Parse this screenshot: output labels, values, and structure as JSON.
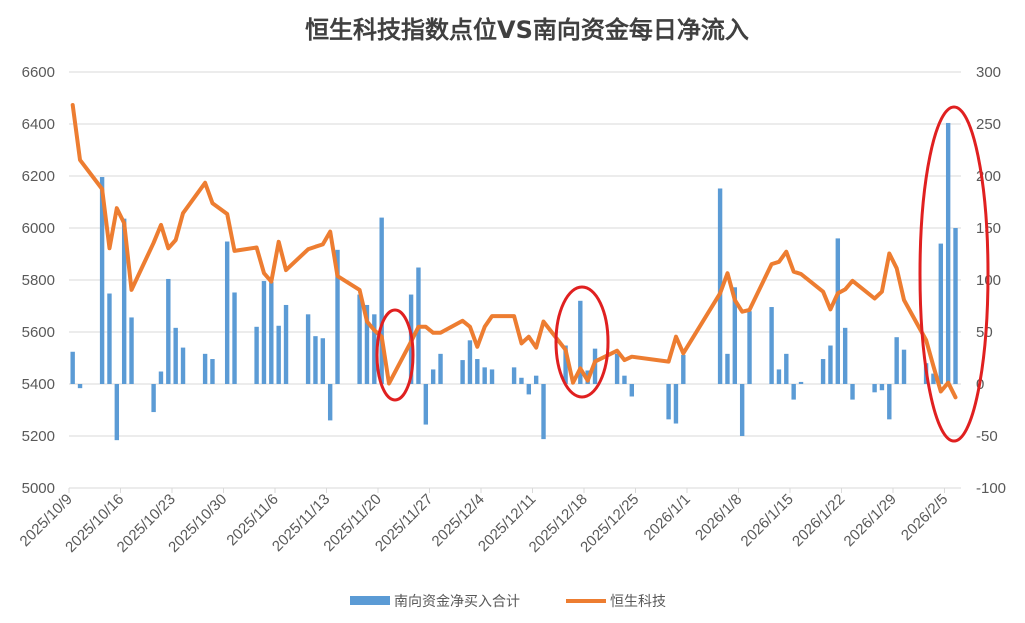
{
  "chart_data": {
    "type": "bar+line",
    "title": "恒生科技指数点位VS南向资金每日净流入",
    "colors": {
      "bar": "#5B9BD5",
      "line": "#ED7D31",
      "annotation": "#E02020"
    },
    "grid": true,
    "legend_placement": "bottom",
    "left_axis": {
      "range": [
        5000,
        6600
      ],
      "ticks": [
        "5000",
        "5200",
        "5400",
        "5600",
        "5800",
        "6000",
        "6200",
        "6400",
        "6600"
      ]
    },
    "right_axis": {
      "range": [
        -100,
        300
      ],
      "ticks": [
        "-100",
        "-50",
        "0",
        "50",
        "100",
        "150",
        "200",
        "250",
        "300"
      ]
    },
    "x_ticks": [
      "2025/10/9",
      "2025/10/16",
      "2025/10/23",
      "2025/10/30",
      "2025/11/6",
      "2025/11/13",
      "2025/11/20",
      "2025/11/27",
      "2025/12/4",
      "2025/12/11",
      "2025/12/18",
      "2025/12/25",
      "2026/1/1",
      "2026/1/8",
      "2026/1/15",
      "2026/1/22",
      "2026/1/29",
      "2026/2/5"
    ],
    "dates": [
      "2025/10/9",
      "2025/10/10",
      "2025/10/13",
      "2025/10/14",
      "2025/10/15",
      "2025/10/16",
      "2025/10/17",
      "2025/10/20",
      "2025/10/21",
      "2025/10/22",
      "2025/10/23",
      "2025/10/24",
      "2025/10/27",
      "2025/10/28",
      "2025/10/30",
      "2025/10/31",
      "2025/11/3",
      "2025/11/4",
      "2025/11/5",
      "2025/11/6",
      "2025/11/7",
      "2025/11/10",
      "2025/11/11",
      "2025/11/12",
      "2025/11/13",
      "2025/11/14",
      "2025/11/17",
      "2025/11/18",
      "2025/11/19",
      "2025/11/20",
      "2025/11/21",
      "2025/11/24",
      "2025/11/25",
      "2025/11/26",
      "2025/11/27",
      "2025/11/28",
      "2025/12/1",
      "2025/12/2",
      "2025/12/3",
      "2025/12/4",
      "2025/12/5",
      "2025/12/8",
      "2025/12/9",
      "2025/12/10",
      "2025/12/11",
      "2025/12/12",
      "2025/12/15",
      "2025/12/16",
      "2025/12/17",
      "2025/12/18",
      "2025/12/19",
      "2025/12/22",
      "2025/12/23",
      "2025/12/24",
      "2025/12/29",
      "2025/12/30",
      "2025/12/31",
      "2026/1/5",
      "2026/1/6",
      "2026/1/7",
      "2026/1/8",
      "2026/1/9",
      "2026/1/12",
      "2026/1/13",
      "2026/1/14",
      "2026/1/15",
      "2026/1/16",
      "2026/1/19",
      "2026/1/20",
      "2026/1/21",
      "2026/1/22",
      "2026/1/23",
      "2026/1/26",
      "2026/1/27",
      "2026/1/28",
      "2026/1/29",
      "2026/1/30",
      "2026/2/2",
      "2026/2/3",
      "2026/2/4",
      "2026/2/5",
      "2026/2/6"
    ],
    "series": [
      {
        "name": "南向资金净买入合计",
        "type": "bar",
        "axis": "right",
        "values": [
          31,
          -4,
          199,
          87,
          -54,
          159,
          64,
          -27,
          12,
          101,
          54,
          35,
          29,
          24,
          137,
          88,
          55,
          99,
          98,
          56,
          76,
          67,
          46,
          44,
          -35,
          129,
          86,
          76,
          67,
          160,
          0,
          86,
          112,
          -39,
          14,
          29,
          23,
          42,
          24,
          16,
          14,
          16,
          6,
          -10,
          8,
          -53,
          37,
          0,
          80,
          13,
          34,
          29,
          8,
          -12,
          -34,
          -38,
          28,
          188,
          29,
          93,
          -50,
          70,
          74,
          14,
          29,
          -15,
          2,
          24,
          37,
          140,
          54,
          -15,
          -8,
          -6,
          -34,
          45,
          33,
          20,
          10,
          135,
          251,
          150
        ]
      },
      {
        "name": "恒生科技",
        "type": "line",
        "axis": "left",
        "values": [
          6473,
          6262,
          6150,
          5922,
          6076,
          6018,
          5762,
          5943,
          6012,
          5922,
          5954,
          6057,
          6174,
          6095,
          6054,
          5912,
          5925,
          5826,
          5794,
          5947,
          5838,
          5918,
          5928,
          5937,
          5986,
          5815,
          5762,
          5640,
          5607,
          5582,
          5402,
          5563,
          5620,
          5620,
          5597,
          5597,
          5643,
          5620,
          5543,
          5620,
          5661,
          5661,
          5556,
          5582,
          5540,
          5640,
          5531,
          5405,
          5460,
          5413,
          5486,
          5528,
          5492,
          5505,
          5486,
          5582,
          5518,
          5749,
          5826,
          5723,
          5678,
          5685,
          5861,
          5870,
          5909,
          5832,
          5823,
          5755,
          5687,
          5749,
          5764,
          5797,
          5729,
          5755,
          5902,
          5845,
          5723,
          5569,
          5469,
          5371,
          5405,
          5349
        ]
      }
    ]
  }
}
